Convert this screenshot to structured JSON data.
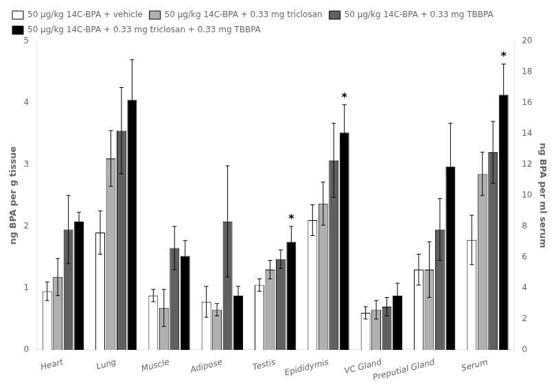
{
  "chart_data": {
    "type": "bar",
    "categories": [
      "Heart",
      "Lung",
      "Muscle",
      "Adipose",
      "Testis",
      "Epididymis",
      "VC Gland",
      "Preputial Gland",
      "Serum"
    ],
    "series": [
      {
        "name": "50 μg/kg 14C-BPA + vehicle",
        "color": "#ffffff",
        "values": [
          0.95,
          1.9,
          0.88,
          0.78,
          1.05,
          2.1,
          0.6,
          1.3,
          1.78
        ],
        "errors": [
          0.15,
          0.35,
          0.1,
          0.25,
          0.1,
          0.25,
          0.1,
          0.25,
          0.4
        ]
      },
      {
        "name": "50 μg/kg 14C-BPA + 0.33 mg triclosan",
        "color": "#b0b0b0",
        "values": [
          1.18,
          3.1,
          0.68,
          0.65,
          1.3,
          2.37,
          0.65,
          1.3,
          2.85
        ],
        "errors": [
          0.3,
          0.45,
          0.3,
          0.1,
          0.15,
          0.35,
          0.15,
          0.45,
          0.35
        ]
      },
      {
        "name": "50 μg/kg 14C-BPA + 0.33 mg TBBPA",
        "color": "#606060",
        "values": [
          1.95,
          3.55,
          1.65,
          2.08,
          1.47,
          3.07,
          0.7,
          1.95,
          3.2
        ],
        "errors": [
          0.55,
          0.7,
          0.35,
          0.9,
          0.15,
          0.6,
          0.15,
          0.5,
          0.5
        ]
      },
      {
        "name": "50 μg/kg 14C-BPA + 0.33 mg triclosan + 0.33 mg TBBPA",
        "color": "#000000",
        "values": [
          2.08,
          4.05,
          1.52,
          0.88,
          1.75,
          3.52,
          0.88,
          2.97,
          4.13
        ],
        "errors": [
          0.15,
          0.65,
          0.25,
          0.15,
          0.25,
          0.45,
          0.2,
          0.7,
          0.5
        ]
      }
    ],
    "ylabel": "ng BPA per g tissue",
    "ylim": [
      0,
      5
    ],
    "yticks": [
      0,
      1,
      2,
      3,
      4,
      5
    ],
    "y2label": "ng BPA per ml serum",
    "y2lim": [
      0,
      20
    ],
    "y2ticks": [
      0,
      2,
      4,
      6,
      8,
      10,
      12,
      14,
      16,
      18,
      20
    ],
    "annotations": [
      {
        "text": "*",
        "series": "50 μg/kg 14C-BPA + 0.33 mg triclosan + 0.33 mg TBBPA",
        "category": "Testis"
      },
      {
        "text": "*",
        "series": "50 μg/kg 14C-BPA + 0.33 mg triclosan + 0.33 mg TBBPA",
        "category": "Epididymis"
      },
      {
        "text": "*",
        "series": "50 μg/kg 14C-BPA + 0.33 mg triclosan + 0.33 mg TBBPA",
        "category": "Serum"
      }
    ],
    "grid": false,
    "legend": "top"
  }
}
